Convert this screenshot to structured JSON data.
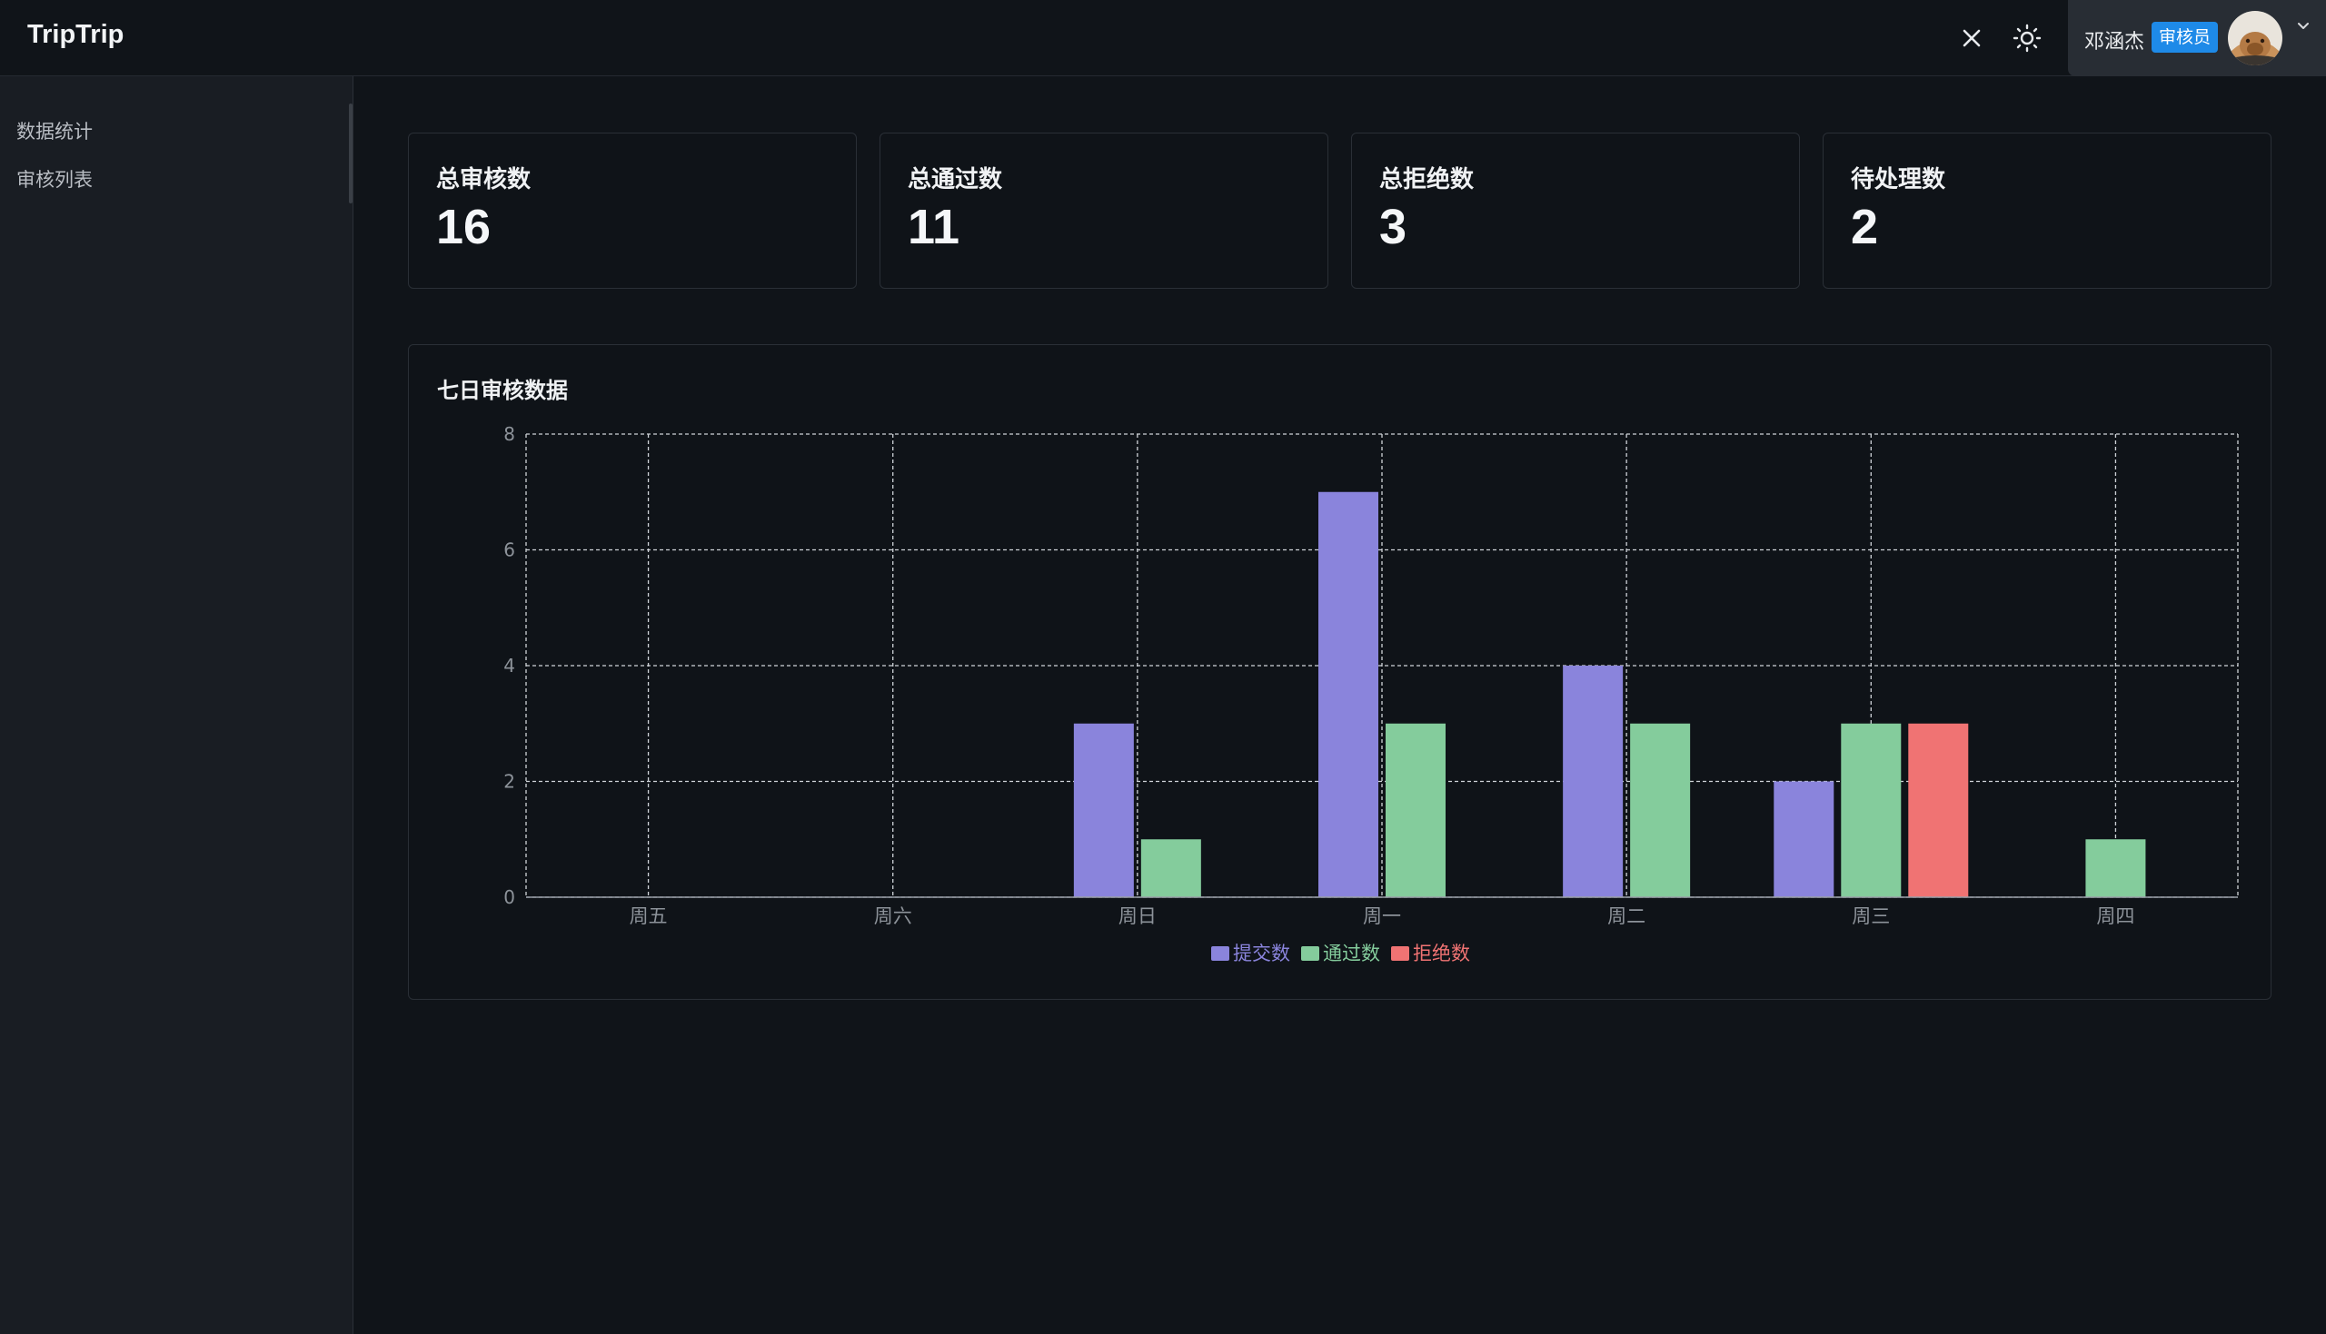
{
  "header": {
    "brand": "TripTrip",
    "user_name": "邓涵杰",
    "role_badge": "审核员",
    "icons": [
      "close-icon",
      "sun-icon",
      "avatar",
      "chevron-down-icon"
    ]
  },
  "sidebar": {
    "items": [
      {
        "label": "数据统计"
      },
      {
        "label": "审核列表"
      }
    ]
  },
  "stats": [
    {
      "title": "总审核数",
      "value": "16"
    },
    {
      "title": "总通过数",
      "value": "11"
    },
    {
      "title": "总拒绝数",
      "value": "3"
    },
    {
      "title": "待处理数",
      "value": "2"
    }
  ],
  "chart": {
    "title": "七日审核数据"
  },
  "colors": {
    "submitted": "#8a84dc",
    "approved": "#84cc9c",
    "rejected": "#f07373",
    "badge": "#1e8ae8"
  },
  "chart_data": {
    "type": "bar",
    "title": "七日审核数据",
    "categories": [
      "周五",
      "周六",
      "周日",
      "周一",
      "周二",
      "周三",
      "周四"
    ],
    "series": [
      {
        "name": "提交数",
        "values": [
          0,
          0,
          3,
          7,
          4,
          2,
          0
        ]
      },
      {
        "name": "通过数",
        "values": [
          0,
          0,
          1,
          3,
          3,
          3,
          1
        ]
      },
      {
        "name": "拒绝数",
        "values": [
          0,
          0,
          0,
          0,
          0,
          3,
          0
        ]
      }
    ],
    "ylim": [
      0,
      8
    ],
    "yticks": [
      0,
      2,
      4,
      6,
      8
    ],
    "grid": true,
    "legend": "bottom-center"
  }
}
